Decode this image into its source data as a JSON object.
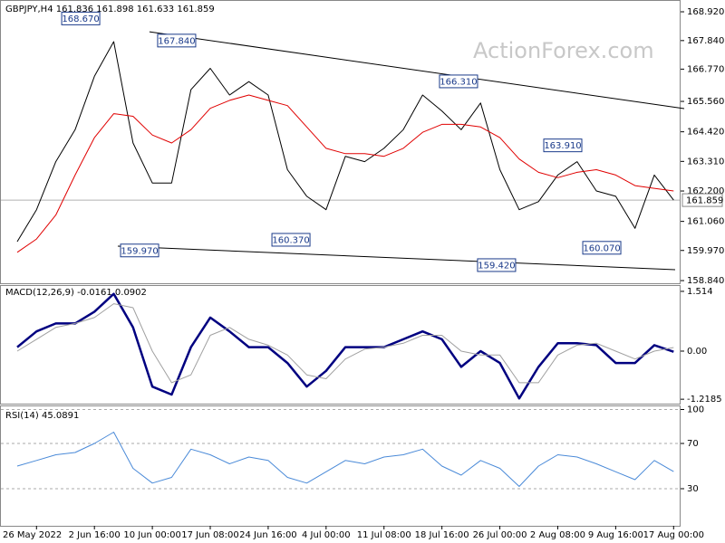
{
  "chart_data": [
    {
      "type": "line",
      "title": "GBPJPY,H4  161.836 161.898 161.633 161.859",
      "watermark": "ActionForex.com",
      "categories": [
        null,
        "26 May 2022",
        null,
        null,
        "2 Jun 16:00",
        null,
        null,
        "10 Jun 00:00",
        null,
        null,
        "17 Jun 08:00",
        null,
        null,
        "24 Jun 16:00",
        null,
        null,
        "4 Jul 00:00",
        null,
        null,
        "11 Jul 08:00",
        null,
        null,
        "18 Jul 16:00",
        null,
        null,
        "26 Jul 00:00",
        null,
        null,
        "2 Aug 08:00",
        null,
        null,
        "9 Aug 16:00",
        null,
        null,
        "17 Aug 00:00"
      ],
      "xlim": [
        -0.75,
        34.55
      ],
      "series": [
        {
          "color": "#000000",
          "values": [
            160.3,
            161.5,
            163.3,
            164.5,
            166.5,
            167.8,
            164.0,
            162.5,
            162.5,
            166.0,
            166.8,
            165.8,
            166.3,
            165.8,
            163.0,
            162.0,
            161.5,
            163.5,
            163.3,
            163.8,
            164.5,
            165.8,
            165.2,
            164.5,
            165.5,
            163.0,
            161.5,
            161.8,
            162.8,
            163.3,
            162.2,
            162.0,
            160.8,
            162.8,
            161.859
          ]
        },
        {
          "color": "#e00000",
          "values": [
            159.9,
            160.4,
            161.3,
            162.8,
            164.2,
            165.1,
            165.0,
            164.3,
            164.0,
            164.5,
            165.3,
            165.6,
            165.8,
            165.6,
            165.4,
            164.6,
            163.8,
            163.6,
            163.6,
            163.5,
            163.8,
            164.4,
            164.7,
            164.7,
            164.6,
            164.2,
            163.4,
            162.9,
            162.7,
            162.9,
            163.0,
            162.8,
            162.4,
            162.3,
            162.2
          ]
        }
      ],
      "ylim": [
        158.74,
        169.26
      ],
      "yticks": [
        {
          "value": 168.92,
          "label": "168.920"
        },
        {
          "value": 167.84,
          "label": "167.840"
        },
        {
          "value": 166.77,
          "label": "166.770"
        },
        {
          "value": 165.56,
          "label": "165.560"
        },
        {
          "value": 164.42,
          "label": "164.420"
        },
        {
          "value": 163.31,
          "label": "163.310"
        },
        {
          "value": 162.2,
          "label": "162.200"
        },
        {
          "value": 161.06,
          "label": "161.060"
        },
        {
          "value": 159.97,
          "label": "159.970"
        },
        {
          "value": 158.84,
          "label": "158.840"
        }
      ],
      "current_price": 161.859,
      "annotations": [
        {
          "value": 168.67,
          "label": "168.670",
          "x": 3.29
        },
        {
          "value": 167.84,
          "label": "167.840",
          "x": 8.26
        },
        {
          "value": 166.31,
          "label": "166.310",
          "x": 22.86
        },
        {
          "value": 163.91,
          "label": "163.910",
          "x": 28.26
        },
        {
          "value": 159.97,
          "label": "159.970",
          "x": 6.34
        },
        {
          "value": 160.37,
          "label": "160.370",
          "x": 14.18
        },
        {
          "value": 159.42,
          "label": "159.420",
          "x": 24.83
        },
        {
          "value": 160.07,
          "label": "160.070",
          "x": 30.28
        }
      ],
      "trendlines": [
        {
          "x": [
            6.85,
            34.55
          ],
          "values": [
            168.17,
            165.29
          ]
        },
        {
          "x": [
            5.21,
            34.08
          ],
          "values": [
            160.13,
            159.25
          ]
        }
      ]
    },
    {
      "type": "line",
      "title": "MACD(12,26,9) -0.0161 0.0902",
      "series": [
        {
          "color": "#000080",
          "values": [
            0.1,
            0.5,
            0.7,
            0.7,
            1.0,
            1.45,
            0.6,
            -0.9,
            -1.1,
            0.1,
            0.85,
            0.5,
            0.1,
            0.1,
            -0.3,
            -0.9,
            -0.5,
            0.1,
            0.1,
            0.1,
            0.3,
            0.5,
            0.3,
            -0.4,
            0.0,
            -0.3,
            -1.2,
            -0.4,
            0.2,
            0.2,
            0.15,
            -0.3,
            -0.3,
            0.15,
            -0.0161
          ]
        },
        {
          "color": "#a0a0a0",
          "values": [
            0.0,
            0.3,
            0.6,
            0.7,
            0.85,
            1.2,
            1.1,
            0.0,
            -0.8,
            -0.6,
            0.4,
            0.6,
            0.3,
            0.15,
            -0.1,
            -0.6,
            -0.7,
            -0.2,
            0.05,
            0.1,
            0.2,
            0.4,
            0.4,
            0.0,
            -0.1,
            -0.1,
            -0.8,
            -0.8,
            -0.1,
            0.15,
            0.2,
            0.0,
            -0.2,
            0.0,
            0.0902
          ]
        }
      ],
      "ylim": [
        -1.33,
        1.65
      ],
      "yticks": [
        1.514,
        {
          "value": 0,
          "label": "0.00"
        },
        -1.2185
      ]
    },
    {
      "type": "line",
      "title": "RSI(14) 45.0891",
      "series": [
        {
          "color": "#4a8ad8",
          "values": [
            50,
            55,
            60,
            62,
            70,
            80,
            48,
            35,
            40,
            65,
            60,
            52,
            58,
            55,
            40,
            35,
            45,
            55,
            52,
            58,
            60,
            65,
            50,
            42,
            55,
            48,
            32,
            50,
            60,
            58,
            52,
            45,
            38,
            55,
            45.0891
          ]
        }
      ],
      "ylim": [
        -2,
        102
      ],
      "yticks": [
        100,
        70,
        30
      ],
      "grid": true
    }
  ]
}
